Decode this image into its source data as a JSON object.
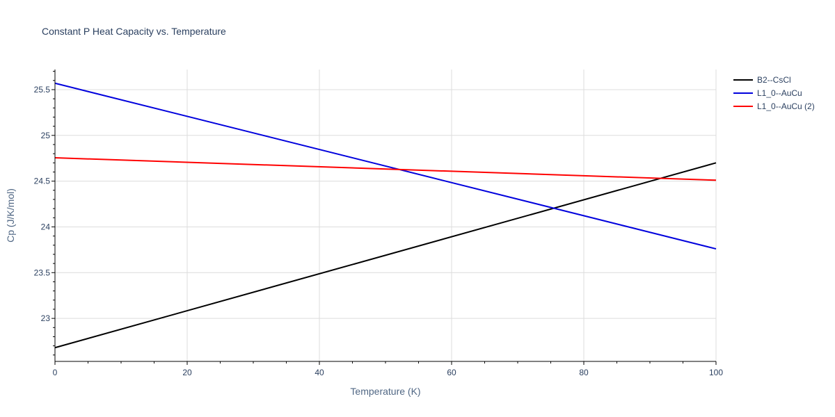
{
  "chart_data": {
    "type": "line",
    "title": "Constant P Heat Capacity vs. Temperature",
    "xlabel": "Temperature (K)",
    "ylabel": "Cp (J/K/mol)",
    "xlim": [
      0,
      100
    ],
    "ylim": [
      22.53,
      25.72
    ],
    "x_ticks": [
      0,
      20,
      40,
      60,
      80,
      100
    ],
    "y_ticks": [
      23,
      23.5,
      24,
      24.5,
      25,
      25.5
    ],
    "x_tick_labels": [
      "0",
      "20",
      "40",
      "60",
      "80",
      "100"
    ],
    "y_tick_labels": [
      "23",
      "23.5",
      "24",
      "24.5",
      "25",
      "25.5"
    ],
    "grid": true,
    "legend_position": "top-right",
    "series": [
      {
        "name": "B2--CsCl",
        "color": "#000000",
        "x": [
          0,
          100
        ],
        "y": [
          22.68,
          24.7
        ]
      },
      {
        "name": "L1_0--AuCu",
        "color": "#0000dd",
        "x": [
          0,
          100
        ],
        "y": [
          25.57,
          23.76
        ]
      },
      {
        "name": "L1_0--AuCu (2)",
        "color": "#ff0000",
        "x": [
          0,
          100
        ],
        "y": [
          24.755,
          24.51
        ]
      }
    ]
  }
}
